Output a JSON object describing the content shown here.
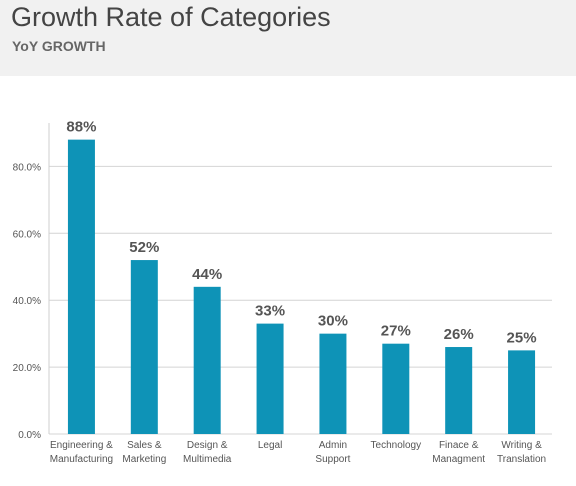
{
  "header": {
    "title": "Growth Rate of Categories",
    "subtitle": "YoY GROWTH"
  },
  "chart_data": {
    "type": "bar",
    "title": "Growth Rate of Categories",
    "subtitle": "YoY GROWTH",
    "xlabel": "",
    "ylabel": "",
    "categories": [
      [
        "Engineering &",
        "Manufacturing"
      ],
      [
        "Sales &",
        "Marketing"
      ],
      [
        "Design &",
        "Multimedia"
      ],
      [
        "Legal"
      ],
      [
        "Admin",
        "Support"
      ],
      [
        "Technology"
      ],
      [
        "Finace &",
        "Managment"
      ],
      [
        "Writing &",
        "Translation"
      ]
    ],
    "values": [
      88,
      52,
      44,
      33,
      30,
      27,
      26,
      25
    ],
    "data_labels": [
      "88%",
      "52%",
      "44%",
      "33%",
      "30%",
      "27%",
      "26%",
      "25%"
    ],
    "ylim": [
      0,
      100
    ],
    "yticks": [
      0,
      20,
      40,
      60,
      80
    ],
    "ytick_labels": [
      "0.0%",
      "20.0%",
      "40.0%",
      "60.0%",
      "80.0%"
    ],
    "grid": true,
    "legend": "none",
    "bar_color": "#0e93b7"
  }
}
